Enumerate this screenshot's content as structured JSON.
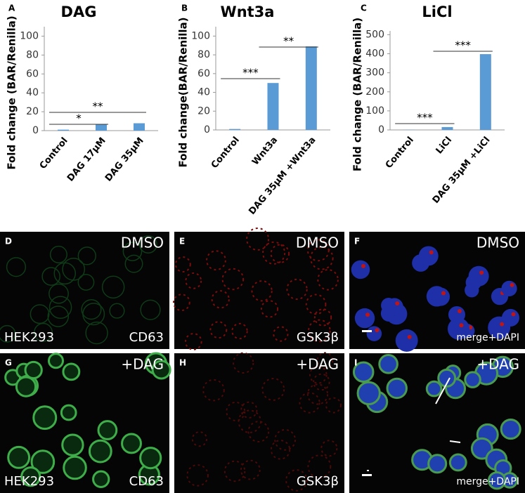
{
  "chart_data": [
    {
      "type": "bar",
      "letter": "A",
      "title": "DAG",
      "y_label": "Fold change (BAR/Renilla)",
      "categories": [
        "Control",
        "DAG 17μM",
        "DAG 35μM"
      ],
      "values": [
        1,
        6.5,
        7.8
      ],
      "color": "#5b9bd5",
      "ylim": [
        0,
        110
      ],
      "yticks": [
        0,
        20,
        40,
        60,
        80,
        100
      ],
      "annotations": [
        "*",
        "**"
      ]
    },
    {
      "type": "bar",
      "letter": "B",
      "title": "Wnt3a",
      "y_label": "Fold change(BAR/Renilla)",
      "categories": [
        "Control",
        "Wnt3a",
        "DAG 35μM +Wnt3a"
      ],
      "values": [
        1,
        50,
        89
      ],
      "color": "#5b9bd5",
      "ylim": [
        0,
        110
      ],
      "yticks": [
        0,
        20,
        40,
        60,
        80,
        100
      ],
      "annotations": [
        "***",
        "**"
      ]
    },
    {
      "type": "bar",
      "letter": "C",
      "title": "LiCl",
      "y_label": "Fold change (BAR/Renilla)",
      "categories": [
        "Control",
        "LiCl",
        "DAG 35μM +LiCl"
      ],
      "values": [
        1,
        15,
        398
      ],
      "color": "#5b9bd5",
      "ylim": [
        0,
        520
      ],
      "yticks": [
        0,
        100,
        200,
        300,
        400,
        500
      ],
      "annotations": [
        "***",
        "***"
      ]
    }
  ],
  "panels": [
    {
      "letter": "D",
      "label": "DMSO",
      "bottom_left": "HEK293",
      "bottom_right": "CD63"
    },
    {
      "letter": "E",
      "label": "DMSO",
      "bottom_right": "GSK3β"
    },
    {
      "letter": "F",
      "label": "DMSO",
      "bottom_right": "merge+DAPI"
    },
    {
      "letter": "G",
      "label": "+DAG",
      "bottom_left": "HEK293",
      "bottom_right": "CD63"
    },
    {
      "letter": "H",
      "label": "+DAG",
      "bottom_right": "GSK3β"
    },
    {
      "letter": "I",
      "label": "+DAG",
      "bottom_right": "merge+DAPI"
    }
  ]
}
